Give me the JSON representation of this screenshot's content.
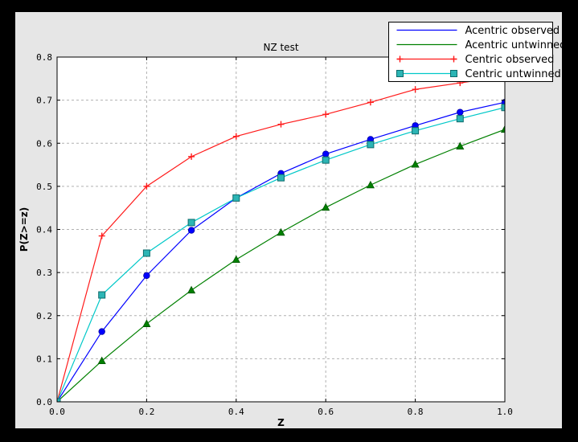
{
  "window": {
    "canvas_bg": "#000000",
    "figure_bg": "#e6e6e6",
    "plot_bg": "#ffffff"
  },
  "chart_data": {
    "type": "line",
    "title": "NZ test",
    "xlabel": "Z",
    "ylabel": "P(Z>=z)",
    "xlim": [
      0.0,
      1.0
    ],
    "ylim": [
      0.0,
      0.8
    ],
    "xticks": [
      0.0,
      0.2,
      0.4,
      0.6,
      0.8,
      1.0
    ],
    "yticks": [
      0.0,
      0.1,
      0.2,
      0.3,
      0.4,
      0.5,
      0.6,
      0.7,
      0.8
    ],
    "grid": true,
    "legend_position": "upper right",
    "x": [
      0.0,
      0.1,
      0.2,
      0.3,
      0.4,
      0.5,
      0.6,
      0.7,
      0.8,
      0.9,
      1.0
    ],
    "series": [
      {
        "name": "Acentric observed",
        "line_color": "#0000ff",
        "marker": "circle",
        "marker_fill": "#0000ff",
        "marker_edge": "#0000a0",
        "legend_markers": false,
        "values": [
          0.0,
          0.163,
          0.293,
          0.398,
          0.473,
          0.53,
          0.575,
          0.609,
          0.641,
          0.672,
          0.695
        ]
      },
      {
        "name": "Acentric untwinned",
        "line_color": "#008000",
        "marker": "triangle",
        "marker_fill": "#008000",
        "marker_edge": "#005500",
        "legend_markers": false,
        "values": [
          0.0,
          0.095,
          0.181,
          0.259,
          0.33,
          0.393,
          0.451,
          0.503,
          0.551,
          0.593,
          0.632
        ]
      },
      {
        "name": "Centric observed",
        "line_color": "#ff1a1a",
        "marker": "plus",
        "marker_fill": "none",
        "marker_edge": "#ff1a1a",
        "legend_markers": true,
        "values": [
          0.0,
          0.385,
          0.5,
          0.569,
          0.616,
          0.644,
          0.667,
          0.695,
          0.725,
          0.74,
          0.755
        ]
      },
      {
        "name": "Centric untwinned",
        "line_color": "#00c8c8",
        "marker": "square",
        "marker_fill": "#2cb5b5",
        "marker_edge": "#0e6b6b",
        "legend_markers": true,
        "values": [
          0.0,
          0.248,
          0.345,
          0.416,
          0.473,
          0.52,
          0.561,
          0.597,
          0.629,
          0.657,
          0.683
        ]
      }
    ],
    "colors": {
      "grid": "#b0b0b0",
      "frame": "#000000",
      "text": "#000000"
    }
  }
}
